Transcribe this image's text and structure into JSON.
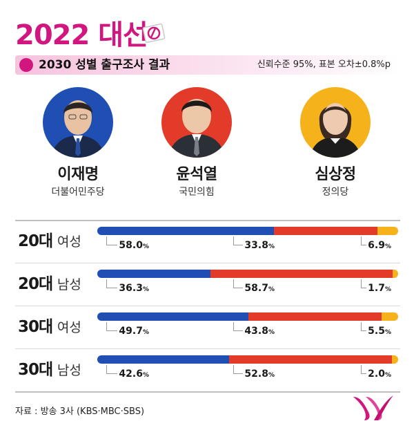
{
  "header": {
    "title": "2022 대선",
    "subtitle": "2030 성별 출구조사 결과",
    "note": "신뢰수준 95%, 표본 오차±0.8%p"
  },
  "candidates": [
    {
      "name": "이재명",
      "party": "더불어민주당",
      "color": "#1f4fb3"
    },
    {
      "name": "윤석열",
      "party": "국민의힘",
      "color": "#e23b2a"
    },
    {
      "name": "심상정",
      "party": "정의당",
      "color": "#f6b21b"
    }
  ],
  "colors": {
    "brand": "#d1177f",
    "series_blue": "#1f4fb3",
    "series_red": "#e23b2a",
    "series_yellow": "#f6b21b"
  },
  "chart_data": {
    "type": "bar",
    "stacked": true,
    "orientation": "horizontal",
    "categories": [
      {
        "bold": "20대",
        "rest": "여성"
      },
      {
        "bold": "20대",
        "rest": "남성"
      },
      {
        "bold": "30대",
        "rest": "여성"
      },
      {
        "bold": "30대",
        "rest": "남성"
      }
    ],
    "unit": "%",
    "series": [
      {
        "name": "이재명",
        "color": "#1f4fb3",
        "values": [
          58.0,
          36.3,
          49.7,
          42.6
        ],
        "labels": [
          "58.0",
          "36.3",
          "49.7",
          "42.6"
        ]
      },
      {
        "name": "윤석열",
        "color": "#e23b2a",
        "values": [
          33.8,
          58.7,
          43.8,
          52.8
        ],
        "labels": [
          "33.8",
          "58.7",
          "43.8",
          "52.8"
        ]
      },
      {
        "name": "심상정",
        "color": "#f6b21b",
        "values": [
          6.9,
          1.7,
          5.5,
          2.0
        ],
        "labels": [
          "6.9",
          "1.7",
          "5.5",
          "2.0"
        ]
      }
    ]
  },
  "footer": {
    "source": "자료 : 방송 3사 (KBS·MBC·SBS)",
    "logo_icon": "yonhap-logo-icon"
  }
}
